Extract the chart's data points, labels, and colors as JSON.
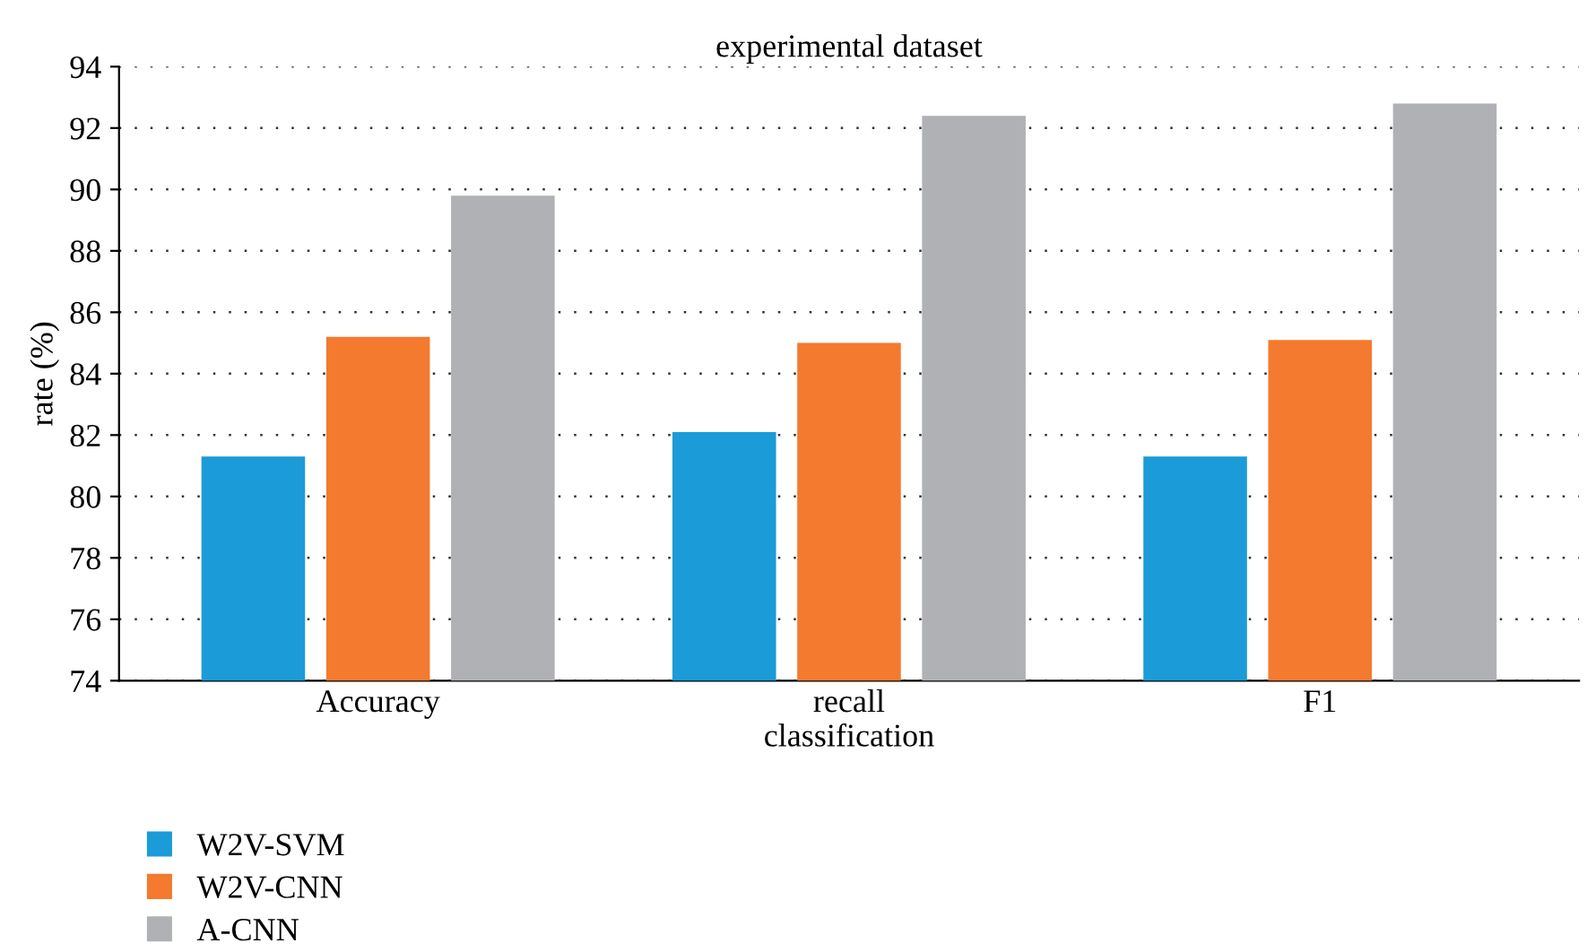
{
  "chart_data": {
    "type": "bar",
    "title": "experimental dataset",
    "xlabel": "classification",
    "ylabel": "rate (%)",
    "categories": [
      "Accuracy",
      "recall",
      "F1"
    ],
    "series": [
      {
        "name": "W2V-SVM",
        "color": "#1b9bd7",
        "values": [
          81.3,
          82.1,
          81.3
        ]
      },
      {
        "name": "W2V-CNN",
        "color": "#f37a2f",
        "values": [
          85.2,
          85.0,
          85.1
        ]
      },
      {
        "name": "A-CNN",
        "color": "#b0b1b4",
        "values": [
          89.8,
          92.4,
          92.8
        ]
      }
    ],
    "ylim": [
      74,
      94
    ],
    "yticks": [
      74,
      76,
      78,
      80,
      82,
      84,
      86,
      88,
      90,
      92,
      94
    ],
    "grid": "y",
    "legend": "bottom left"
  }
}
